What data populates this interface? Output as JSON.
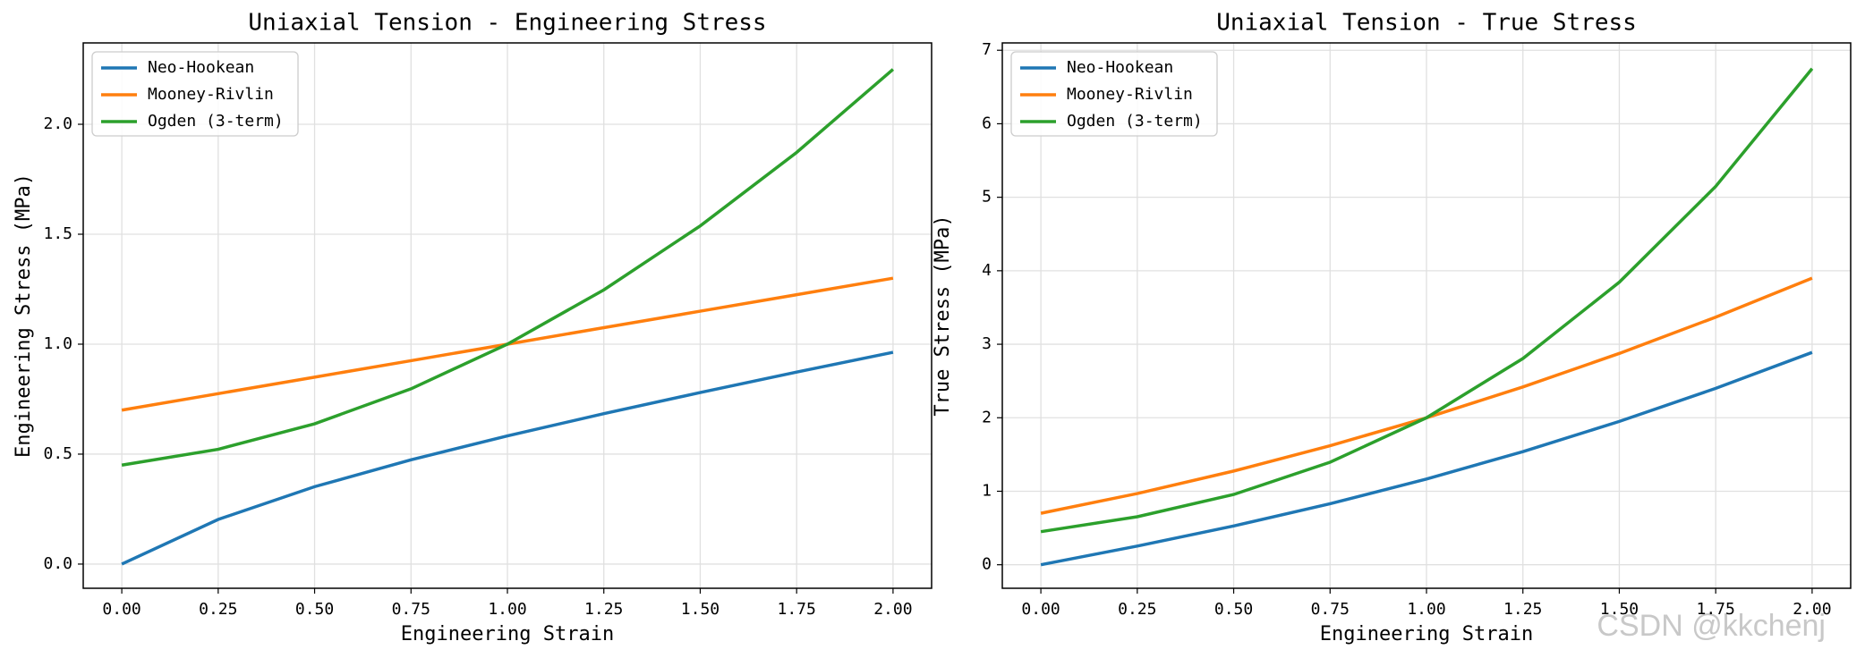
{
  "chart_data": [
    {
      "type": "line",
      "title": "Uniaxial Tension - Engineering Stress",
      "xlabel": "Engineering Strain",
      "ylabel": "Engineering Stress (MPa)",
      "x": [
        0,
        0.25,
        0.5,
        0.75,
        1.0,
        1.25,
        1.5,
        1.75,
        2.0
      ],
      "series": [
        {
          "name": "Neo-Hookean",
          "color": "#1f77b4",
          "values": [
            0,
            0.203,
            0.352,
            0.474,
            0.583,
            0.684,
            0.78,
            0.873,
            0.963
          ]
        },
        {
          "name": "Mooney-Rivlin",
          "color": "#ff7f0e",
          "values": [
            0.7,
            0.775,
            0.85,
            0.925,
            1.0,
            1.075,
            1.15,
            1.225,
            1.3
          ]
        },
        {
          "name": "Ogden (3-term)",
          "color": "#2ca02c",
          "values": [
            0.45,
            0.522,
            0.638,
            0.797,
            1.0,
            1.247,
            1.538,
            1.872,
            2.25
          ]
        }
      ],
      "xlim": [
        -0.1,
        2.1
      ],
      "ylim": [
        -0.11,
        2.37
      ],
      "xticks": [
        {
          "value": 0,
          "label": "0.00"
        },
        {
          "value": 0.25,
          "label": "0.25"
        },
        {
          "value": 0.5,
          "label": "0.50"
        },
        {
          "value": 0.75,
          "label": "0.75"
        },
        {
          "value": 1,
          "label": "1.00"
        },
        {
          "value": 1.25,
          "label": "1.25"
        },
        {
          "value": 1.5,
          "label": "1.50"
        },
        {
          "value": 1.75,
          "label": "1.75"
        },
        {
          "value": 2,
          "label": "2.00"
        }
      ],
      "yticks": [
        {
          "value": 0,
          "label": "0.0"
        },
        0.5,
        {
          "value": 1,
          "label": "1.0"
        },
        1.5,
        {
          "value": 2,
          "label": "2.0"
        }
      ],
      "grid": true,
      "legend": "upper left"
    },
    {
      "type": "line",
      "title": "Uniaxial Tension - True Stress",
      "xlabel": "Engineering Strain",
      "ylabel": "True Stress (MPa)",
      "x": [
        0,
        0.25,
        0.5,
        0.75,
        1.0,
        1.25,
        1.5,
        1.75,
        2.0
      ],
      "series": [
        {
          "name": "Neo-Hookean",
          "color": "#1f77b4",
          "values": [
            0,
            0.254,
            0.528,
            0.83,
            1.166,
            1.539,
            1.95,
            2.4,
            2.889
          ]
        },
        {
          "name": "Mooney-Rivlin",
          "color": "#ff7f0e",
          "values": [
            0.7,
            0.969,
            1.275,
            1.619,
            2.0,
            2.419,
            2.875,
            3.369,
            3.9
          ]
        },
        {
          "name": "Ogden (3-term)",
          "color": "#2ca02c",
          "values": [
            0.45,
            0.653,
            0.956,
            1.395,
            2.0,
            2.806,
            3.844,
            5.148,
            6.75
          ]
        }
      ],
      "xlim": [
        -0.1,
        2.1
      ],
      "ylim": [
        -0.32,
        7.1
      ],
      "xticks": [
        {
          "value": 0,
          "label": "0.00"
        },
        {
          "value": 0.25,
          "label": "0.25"
        },
        {
          "value": 0.5,
          "label": "0.50"
        },
        {
          "value": 0.75,
          "label": "0.75"
        },
        {
          "value": 1,
          "label": "1.00"
        },
        {
          "value": 1.25,
          "label": "1.25"
        },
        {
          "value": 1.5,
          "label": "1.50"
        },
        {
          "value": 1.75,
          "label": "1.75"
        },
        {
          "value": 2,
          "label": "2.00"
        }
      ],
      "yticks": [
        0,
        1,
        2,
        3,
        4,
        5,
        6,
        7
      ],
      "grid": true,
      "legend": "upper left"
    }
  ],
  "watermark": "CSDN @kkchenj"
}
